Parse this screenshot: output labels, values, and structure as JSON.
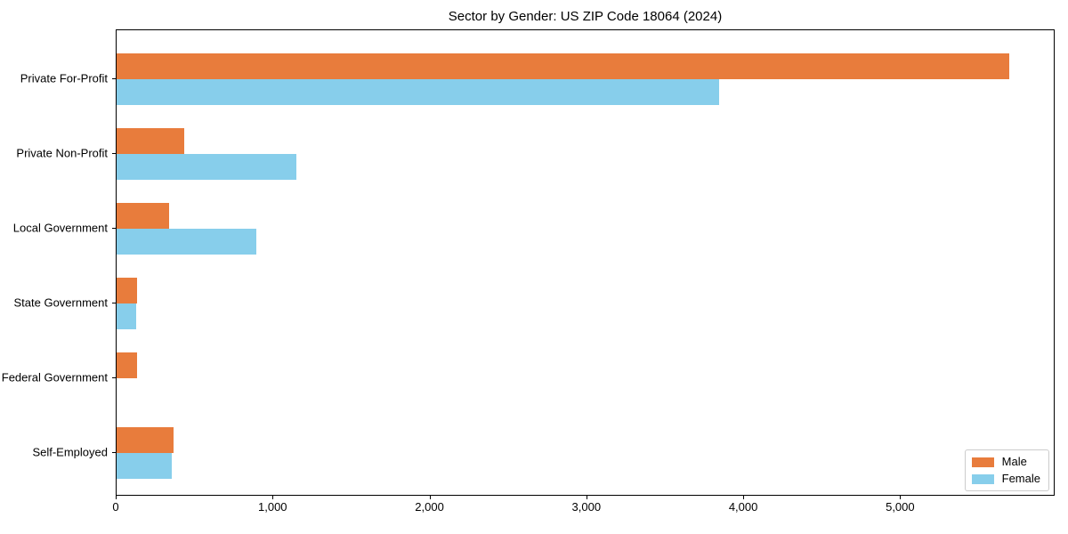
{
  "chart_data": {
    "type": "bar",
    "orientation": "horizontal",
    "title": "Sector by Gender: US ZIP Code 18064 (2024)",
    "categories": [
      "Private For-Profit",
      "Private Non-Profit",
      "Local Government",
      "State Government",
      "Federal Government",
      "Self-Employed"
    ],
    "series": [
      {
        "name": "Male",
        "color": "#E87C3C",
        "values": [
          5700,
          433,
          336,
          132,
          128,
          365
        ]
      },
      {
        "name": "Female",
        "color": "#87CEEB",
        "values": [
          3850,
          1147,
          892,
          126,
          0,
          353
        ]
      }
    ],
    "xlabel": "",
    "ylabel": "",
    "xlim": [
      0,
      5985
    ],
    "xticks": [
      0,
      1000,
      2000,
      3000,
      4000,
      5000
    ],
    "xtick_labels": [
      "0",
      "1,000",
      "2,000",
      "3,000",
      "4,000",
      "5,000"
    ],
    "grid": false,
    "legend_position": "lower right",
    "colors": {
      "male": "#E87C3C",
      "female": "#87CEEB",
      "spine": "#000000",
      "legend_border": "#cccccc"
    }
  }
}
